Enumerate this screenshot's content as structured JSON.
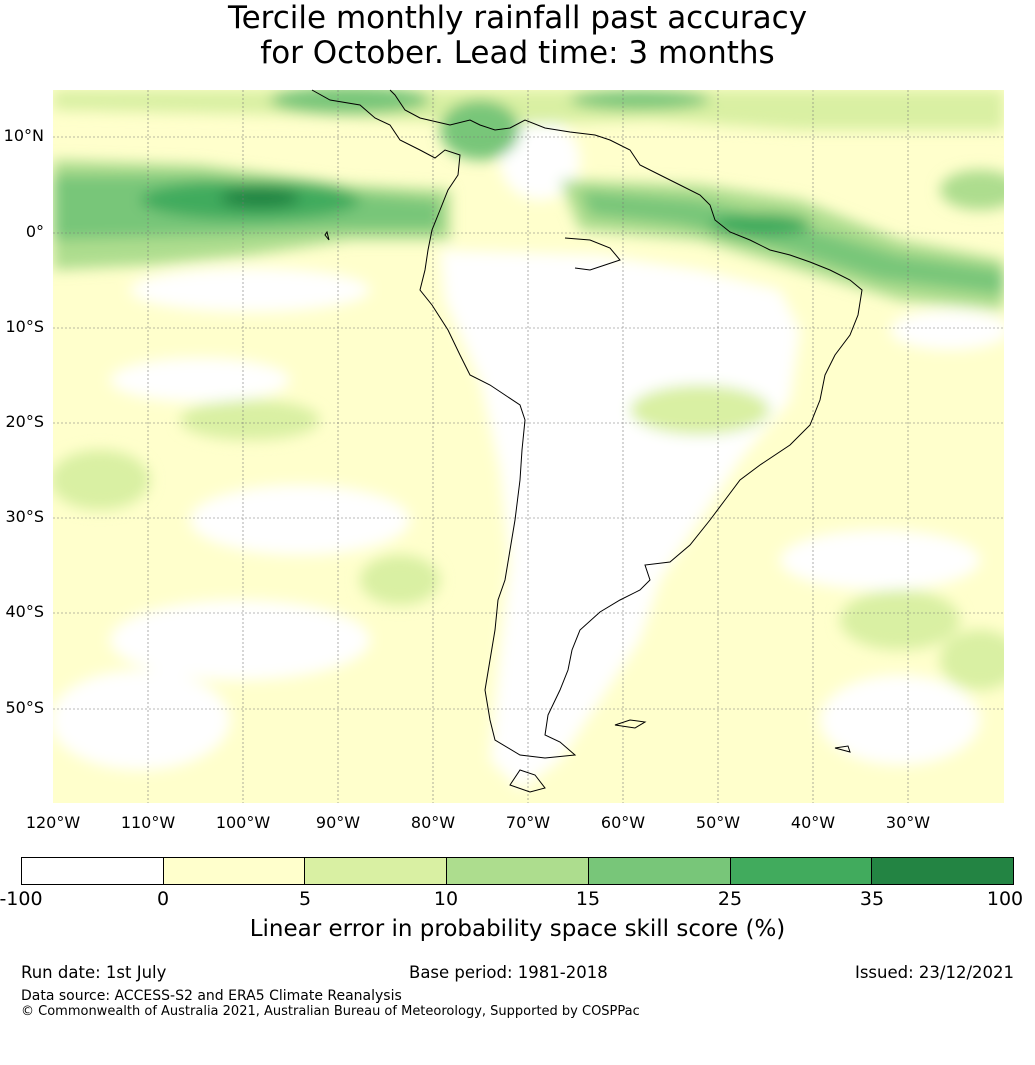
{
  "title": {
    "line1": "Tercile monthly rainfall past accuracy",
    "line2": "for October. Lead time: 3 months"
  },
  "map": {
    "region": "South America",
    "lat_labels": [
      "10°N",
      "0°",
      "10°S",
      "20°S",
      "30°S",
      "40°S",
      "50°S"
    ],
    "lon_labels": [
      "120°W",
      "110°W",
      "100°W",
      "90°W",
      "80°W",
      "70°W",
      "60°W",
      "50°W",
      "40°W",
      "30°W"
    ],
    "gridlines": true
  },
  "colorbar": {
    "label": "Linear error in probability space skill score (%)",
    "ticks": [
      "-100",
      "0",
      "5",
      "10",
      "15",
      "25",
      "35",
      "100"
    ],
    "colors": [
      "#ffffff",
      "#ffffcc",
      "#d9f0a3",
      "#addd8e",
      "#78c679",
      "#41ab5d",
      "#238443"
    ]
  },
  "footer": {
    "run_date": "Run date: 1st July",
    "base_period": "Base period: 1981-2018",
    "issued": "Issued: 23/12/2021",
    "data_source": "Data source: ACCESS-S2 and ERA5 Climate Reanalysis",
    "copyright": "© Commonwealth of Australia 2021, Australian Bureau of Meteorology, Supported by COSPPac"
  }
}
